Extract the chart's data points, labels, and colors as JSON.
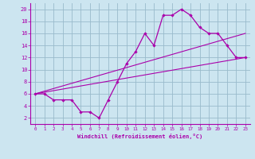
{
  "bg_color": "#cce5f0",
  "line_color": "#aa00aa",
  "grid_color": "#99bbcc",
  "xlabel": "Windchill (Refroidissement éolien,°C)",
  "xlabel_color": "#aa00aa",
  "tick_color": "#aa00aa",
  "xlim": [
    -0.5,
    23.5
  ],
  "ylim": [
    1,
    21
  ],
  "yticks": [
    2,
    4,
    6,
    8,
    10,
    12,
    14,
    16,
    18,
    20
  ],
  "xticks": [
    0,
    1,
    2,
    3,
    4,
    5,
    6,
    7,
    8,
    9,
    10,
    11,
    12,
    13,
    14,
    15,
    16,
    17,
    18,
    19,
    20,
    21,
    22,
    23
  ],
  "line1_x": [
    0,
    1,
    2,
    3,
    4,
    5,
    6,
    7,
    8,
    9,
    10,
    11,
    12,
    13,
    14,
    15,
    16,
    17,
    18,
    19,
    20,
    21,
    22,
    23
  ],
  "line1_y": [
    6,
    6,
    5,
    5,
    5,
    3,
    3,
    2,
    5,
    8,
    11,
    13,
    16,
    14,
    19,
    19,
    20,
    19,
    17,
    16,
    16,
    14,
    12,
    12
  ],
  "line2_x": [
    0,
    23
  ],
  "line2_y": [
    6,
    12
  ],
  "line3_x": [
    0,
    23
  ],
  "line3_y": [
    6,
    16
  ]
}
